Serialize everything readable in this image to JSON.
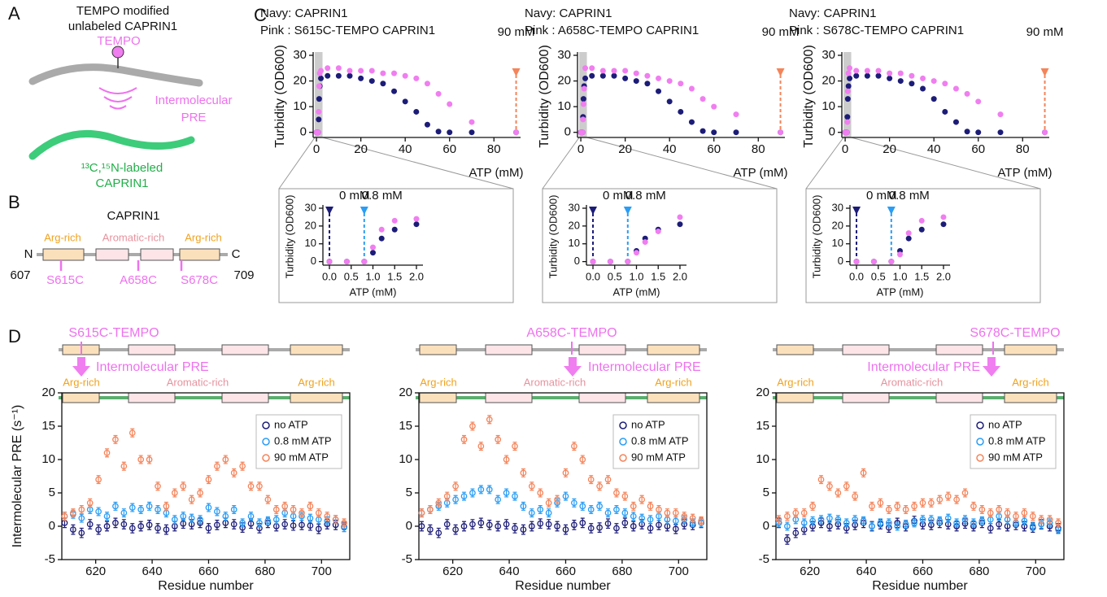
{
  "panel_labels": [
    "A",
    "B",
    "C",
    "D"
  ],
  "panel_a": {
    "title_lines": [
      "TEMPO modified",
      "unlabeled CAPRIN1"
    ],
    "tempo": "TEMPO",
    "pre_lines": [
      "Intermolecular",
      "PRE"
    ],
    "labeled_lines": [
      "¹³C,¹⁵N-labeled",
      "CAPRIN1"
    ]
  },
  "panel_b": {
    "title": "CAPRIN1",
    "n": "N",
    "c": "C",
    "start": 607,
    "end": 709,
    "domains": [
      "Arg-rich",
      "Aromatic-rich",
      "Arg-rich"
    ],
    "mutations": [
      "S615C",
      "A658C",
      "S678C"
    ]
  },
  "panel_d": [
    {
      "label": "S615C-TEMPO",
      "arrow_text": "Intermolecular PRE",
      "domains": [
        "Arg-rich",
        "Aromatic-rich",
        "Arg-rich"
      ]
    },
    {
      "label": "A658C-TEMPO",
      "arrow_text": "Intermolecular PRE",
      "domains": [
        "Arg-rich",
        "Aromatic-rich",
        "Arg-rich"
      ]
    },
    {
      "label": "S678C-TEMPO",
      "arrow_text": "Intermolecular PRE",
      "domains": [
        "Arg-rich",
        "Aromatic-rich",
        "Arg-rich"
      ]
    }
  ],
  "chart_data": [
    {
      "type": "scatter",
      "xlabel": "ATP (mM)",
      "ylabel": "Turbidity (OD600)",
      "xlim": [
        -1.5,
        92
      ],
      "ylim": [
        -2,
        30
      ],
      "xticks": [
        0,
        20,
        40,
        60,
        80
      ],
      "yticks": [
        0,
        10,
        20,
        30
      ],
      "x": [
        0,
        0.4,
        0.8,
        1,
        1.2,
        1.5,
        2,
        5,
        10,
        15,
        20,
        25,
        30,
        35,
        40,
        45,
        50,
        55,
        60,
        70,
        90
      ],
      "series": [
        {
          "name": "Navy: CAPRIN1",
          "color": "#1c1c78",
          "values": [
            0,
            0,
            0,
            5,
            13,
            18,
            21,
            22,
            22,
            22,
            21,
            20,
            19,
            16,
            12,
            8,
            3,
            0.3,
            0,
            0,
            0
          ]
        },
        {
          "name": "Pink : S615C-TEMPO CAPRIN1",
          "color": "#f07ef0",
          "values": [
            0,
            0,
            0,
            8,
            18,
            23,
            24,
            25,
            25,
            24,
            24,
            24,
            23,
            23,
            22,
            21,
            19,
            15,
            11,
            4,
            0
          ]
        }
      ],
      "annotations": [
        {
          "text": "90 mM",
          "x": 90,
          "color": "#f4845a"
        }
      ]
    },
    {
      "type": "scatter",
      "xlabel": "ATP (mM)",
      "ylabel": "Turbidity (OD600)",
      "xlim": [
        -1.5,
        92
      ],
      "ylim": [
        -2,
        30
      ],
      "xticks": [
        0,
        20,
        40,
        60,
        80
      ],
      "yticks": [
        0,
        10,
        20,
        30
      ],
      "x": [
        0,
        0.4,
        0.8,
        1,
        1.2,
        1.5,
        2,
        5,
        10,
        15,
        20,
        25,
        30,
        35,
        40,
        45,
        50,
        55,
        60,
        70,
        90
      ],
      "series": [
        {
          "name": "Navy: CAPRIN1",
          "color": "#1c1c78",
          "values": [
            0,
            0,
            0,
            6,
            13,
            18,
            21,
            22,
            22,
            22,
            21,
            20,
            19,
            16,
            12,
            8,
            4,
            0.5,
            0,
            0,
            0
          ]
        },
        {
          "name": "Pink : A658C-TEMPO CAPRIN1",
          "color": "#f07ef0",
          "values": [
            0,
            0,
            0,
            5,
            11,
            17,
            25,
            25,
            24,
            24,
            24,
            23,
            22,
            21,
            20,
            19,
            17,
            13,
            10,
            7,
            0
          ]
        }
      ],
      "annotations": [
        {
          "text": "90 mM",
          "x": 90,
          "color": "#f4845a"
        }
      ]
    },
    {
      "type": "scatter",
      "xlabel": "ATP (mM)",
      "ylabel": "Turbidity (OD600)",
      "xlim": [
        -1.5,
        92
      ],
      "ylim": [
        -2,
        30
      ],
      "xticks": [
        0,
        20,
        40,
        60,
        80
      ],
      "yticks": [
        0,
        10,
        20,
        30
      ],
      "x": [
        0,
        0.4,
        0.8,
        1,
        1.2,
        1.5,
        2,
        5,
        10,
        15,
        20,
        25,
        30,
        35,
        40,
        45,
        50,
        55,
        60,
        70,
        90
      ],
      "series": [
        {
          "name": "Navy: CAPRIN1",
          "color": "#1c1c78",
          "values": [
            0,
            0,
            0,
            6,
            13,
            18,
            21,
            22,
            22,
            22,
            21,
            20,
            19,
            17,
            13,
            8,
            4,
            0.3,
            0,
            0,
            0
          ]
        },
        {
          "name": "Pink : S678C-TEMPO CAPRIN1",
          "color": "#f07ef0",
          "values": [
            0,
            0,
            0,
            4,
            16,
            23,
            25,
            24,
            24,
            24,
            23,
            23,
            22,
            21,
            20,
            19,
            17,
            15,
            12,
            7,
            0
          ]
        }
      ],
      "annotations": [
        {
          "text": "90 mM",
          "x": 90,
          "color": "#f4845a"
        }
      ]
    },
    {
      "type": "scatter",
      "xlabel": "ATP (mM)",
      "ylabel": "Turbidity (OD600)",
      "xlim": [
        -0.15,
        2.15
      ],
      "ylim": [
        -2,
        30
      ],
      "xticks": [
        {
          "value": 0,
          "label": "0.0"
        },
        0.5,
        {
          "value": 1,
          "label": "1.0"
        },
        1.5,
        {
          "value": 2,
          "label": "2.0"
        }
      ],
      "yticks": [
        0,
        10,
        20,
        30
      ],
      "x": [
        0,
        0.4,
        0.8,
        1,
        1.2,
        1.5,
        2
      ],
      "series": [
        {
          "color": "#1c1c78",
          "values": [
            0,
            0,
            0,
            5,
            13,
            18,
            21
          ]
        },
        {
          "color": "#f07ef0",
          "values": [
            0,
            0,
            0,
            8,
            18,
            23,
            24
          ]
        }
      ],
      "annotations": [
        {
          "text": "0 mM",
          "x": 0,
          "color": "#1c1c78"
        },
        {
          "text": "0.8 mM",
          "x": 0.8,
          "color": "#2a9df4"
        }
      ]
    },
    {
      "type": "scatter",
      "xlabel": "ATP (mM)",
      "ylabel": "Turbidity (OD600)",
      "xlim": [
        -0.15,
        2.15
      ],
      "ylim": [
        -2,
        30
      ],
      "xticks": [
        {
          "value": 0,
          "label": "0.0"
        },
        0.5,
        {
          "value": 1,
          "label": "1.0"
        },
        1.5,
        {
          "value": 2,
          "label": "2.0"
        }
      ],
      "yticks": [
        0,
        10,
        20,
        30
      ],
      "x": [
        0,
        0.4,
        0.8,
        1,
        1.2,
        1.5,
        2
      ],
      "series": [
        {
          "color": "#1c1c78",
          "values": [
            0,
            0,
            0,
            6,
            13,
            18,
            21
          ]
        },
        {
          "color": "#f07ef0",
          "values": [
            0,
            0,
            0,
            5,
            11,
            17,
            25
          ]
        }
      ],
      "annotations": [
        {
          "text": "0 mM",
          "x": 0,
          "color": "#1c1c78"
        },
        {
          "text": "0.8 mM",
          "x": 0.8,
          "color": "#2a9df4"
        }
      ]
    },
    {
      "type": "scatter",
      "xlabel": "ATP (mM)",
      "ylabel": "Turbidity (OD600)",
      "xlim": [
        -0.15,
        2.15
      ],
      "ylim": [
        -2,
        30
      ],
      "xticks": [
        {
          "value": 0,
          "label": "0.0"
        },
        0.5,
        {
          "value": 1,
          "label": "1.0"
        },
        1.5,
        {
          "value": 2,
          "label": "2.0"
        }
      ],
      "yticks": [
        0,
        10,
        20,
        30
      ],
      "x": [
        0,
        0.4,
        0.8,
        1,
        1.2,
        1.5,
        2
      ],
      "series": [
        {
          "color": "#1c1c78",
          "values": [
            0,
            0,
            0,
            6,
            13,
            18,
            21
          ]
        },
        {
          "color": "#f07ef0",
          "values": [
            0,
            0,
            0,
            4,
            16,
            23,
            25
          ]
        }
      ],
      "annotations": [
        {
          "text": "0 mM",
          "x": 0,
          "color": "#1c1c78"
        },
        {
          "text": "0.8 mM",
          "x": 0.8,
          "color": "#2a9df4"
        }
      ]
    },
    {
      "type": "errorbar",
      "xlabel": "Residue number",
      "ylabel": "Intermolecular PRE (s⁻¹)",
      "xlim": [
        608,
        710
      ],
      "ylim": [
        -5,
        20
      ],
      "xticks": [
        620,
        640,
        660,
        680,
        700
      ],
      "yticks": [
        -5,
        0,
        5,
        10,
        15,
        20
      ],
      "legend": "upper right",
      "x": [
        609,
        612,
        615,
        618,
        621,
        624,
        627,
        630,
        633,
        636,
        639,
        642,
        645,
        648,
        651,
        654,
        657,
        660,
        663,
        666,
        669,
        672,
        675,
        678,
        681,
        684,
        687,
        690,
        693,
        696,
        699,
        702,
        705,
        708
      ],
      "series": [
        {
          "name": "no ATP",
          "color": "#1c1c78",
          "error": 0.7,
          "values": [
            0.5,
            -0.5,
            -1,
            0.3,
            -0.5,
            0,
            0.5,
            0.3,
            -0.3,
            0,
            0.2,
            -0.3,
            -0.5,
            0,
            0.4,
            0.3,
            0.5,
            -0.3,
            0.2,
            0.5,
            0.3,
            -0.2,
            0.4,
            -0.3,
            0.5,
            0,
            0.3,
            0.1,
            0.2,
            0.1,
            -0.4,
            0.3,
            0.2,
            -0.1
          ]
        },
        {
          "name": "0.8 mM ATP",
          "color": "#2a9df4",
          "error": 0.6,
          "values": [
            1.5,
            1.8,
            1.2,
            2.5,
            2.2,
            1.5,
            3,
            2,
            2.8,
            2.5,
            3,
            2.5,
            2,
            1,
            1.5,
            1.2,
            1,
            2.8,
            2.2,
            1.5,
            2.5,
            0.5,
            1.5,
            0.5,
            0.8,
            1,
            2,
            1.5,
            1.5,
            1.2,
            1,
            0.8,
            1,
            -0.2
          ]
        },
        {
          "name": "90 mM ATP",
          "color": "#f4845a",
          "error": 0.6,
          "values": [
            1.5,
            2,
            2.5,
            3.5,
            7,
            11,
            13,
            9,
            14,
            10,
            10,
            6,
            3,
            5,
            6,
            4,
            5,
            7,
            9,
            10,
            8,
            9,
            6,
            6,
            4,
            2.5,
            3,
            2.5,
            2,
            3,
            2,
            1.5,
            1,
            0.5
          ]
        }
      ]
    },
    {
      "type": "errorbar",
      "xlabel": "Residue number",
      "xlim": [
        608,
        710
      ],
      "ylim": [
        -5,
        20
      ],
      "xticks": [
        620,
        640,
        660,
        680,
        700
      ],
      "yticks": [
        -5,
        0,
        5,
        10,
        15,
        20
      ],
      "legend": "upper right",
      "x": [
        609,
        612,
        615,
        618,
        621,
        624,
        627,
        630,
        633,
        636,
        639,
        642,
        645,
        648,
        651,
        654,
        657,
        660,
        663,
        666,
        669,
        672,
        675,
        678,
        681,
        684,
        687,
        690,
        693,
        696,
        699,
        702,
        705,
        708
      ],
      "series": [
        {
          "name": "no ATP",
          "color": "#1c1c78",
          "error": 0.7,
          "values": [
            0,
            -0.5,
            -1,
            0.3,
            -0.5,
            0,
            0.3,
            0.5,
            0.2,
            0,
            0.3,
            -0.3,
            -0.5,
            0,
            0.4,
            0.3,
            0,
            -0.5,
            0.2,
            0.5,
            -0.3,
            -0.2,
            0.4,
            -0.3,
            0.5,
            0,
            0.3,
            -0.3,
            0.2,
            0,
            -0.4,
            0.3,
            0.2,
            0.5
          ]
        },
        {
          "name": "0.8 mM ATP",
          "color": "#2a9df4",
          "error": 0.6,
          "values": [
            2,
            2.5,
            3,
            3.5,
            4,
            4.5,
            5,
            5.5,
            5.5,
            4,
            5,
            4.5,
            3,
            2,
            2.5,
            2,
            3.5,
            4.5,
            3.5,
            3,
            2.5,
            3,
            2,
            2.5,
            2,
            1.5,
            1.2,
            1,
            1.5,
            1,
            0.8,
            1,
            0.5,
            0.5
          ]
        },
        {
          "name": "90 mM ATP",
          "color": "#f4845a",
          "error": 0.6,
          "values": [
            2,
            2.5,
            3.5,
            4.5,
            6,
            13,
            15,
            12,
            16,
            13,
            10,
            12,
            8,
            6,
            5,
            3.5,
            4,
            8,
            12,
            10,
            7,
            6,
            7,
            5,
            4.5,
            3,
            4,
            3,
            2.5,
            2,
            2,
            1.5,
            1.2,
            0.8
          ]
        }
      ]
    },
    {
      "type": "errorbar",
      "xlabel": "Residue number",
      "xlim": [
        608,
        710
      ],
      "ylim": [
        -5,
        20
      ],
      "xticks": [
        620,
        640,
        660,
        680,
        700
      ],
      "yticks": [
        -5,
        0,
        5,
        10,
        15,
        20
      ],
      "legend": "upper right",
      "x": [
        609,
        612,
        615,
        618,
        621,
        624,
        627,
        630,
        633,
        636,
        639,
        642,
        645,
        648,
        651,
        654,
        657,
        660,
        663,
        666,
        669,
        672,
        675,
        678,
        681,
        684,
        687,
        690,
        693,
        696,
        699,
        702,
        705,
        708
      ],
      "series": [
        {
          "name": "no ATP",
          "color": "#1c1c78",
          "error": 0.7,
          "values": [
            0.5,
            -2,
            -1,
            -0.5,
            0,
            0.5,
            0,
            0.3,
            -0.3,
            0.2,
            0.5,
            0,
            0.3,
            -0.2,
            0.5,
            0,
            0.8,
            0.3,
            0.2,
            0.5,
            0.3,
            0,
            0.4,
            0,
            0.5,
            -0.3,
            0.3,
            0,
            0.2,
            0,
            -0.2,
            0.3,
            0,
            -0.3
          ]
        },
        {
          "name": "0.8 mM ATP",
          "color": "#2a9df4",
          "error": 0.6,
          "values": [
            0.5,
            0,
            1,
            0.5,
            0.8,
            1,
            1.2,
            1,
            0.5,
            1,
            0.8,
            0,
            0.5,
            0.5,
            0,
            0.3,
            0.5,
            1,
            1,
            0.8,
            1.2,
            0.5,
            1,
            0.5,
            0.8,
            1,
            1.5,
            1,
            0.5,
            0.8,
            0,
            0.3,
            0.5,
            -0.5
          ]
        },
        {
          "name": "90 mM ATP",
          "color": "#f4845a",
          "error": 0.6,
          "values": [
            1,
            1.5,
            2,
            2,
            3,
            7,
            6,
            5,
            6,
            4.5,
            8,
            3,
            3.5,
            2.5,
            3,
            2.5,
            3,
            3.5,
            3.5,
            4,
            4.5,
            4,
            5,
            3,
            2.5,
            2,
            2.5,
            2,
            1.5,
            2,
            1.5,
            1,
            1,
            0.5
          ]
        }
      ]
    }
  ]
}
